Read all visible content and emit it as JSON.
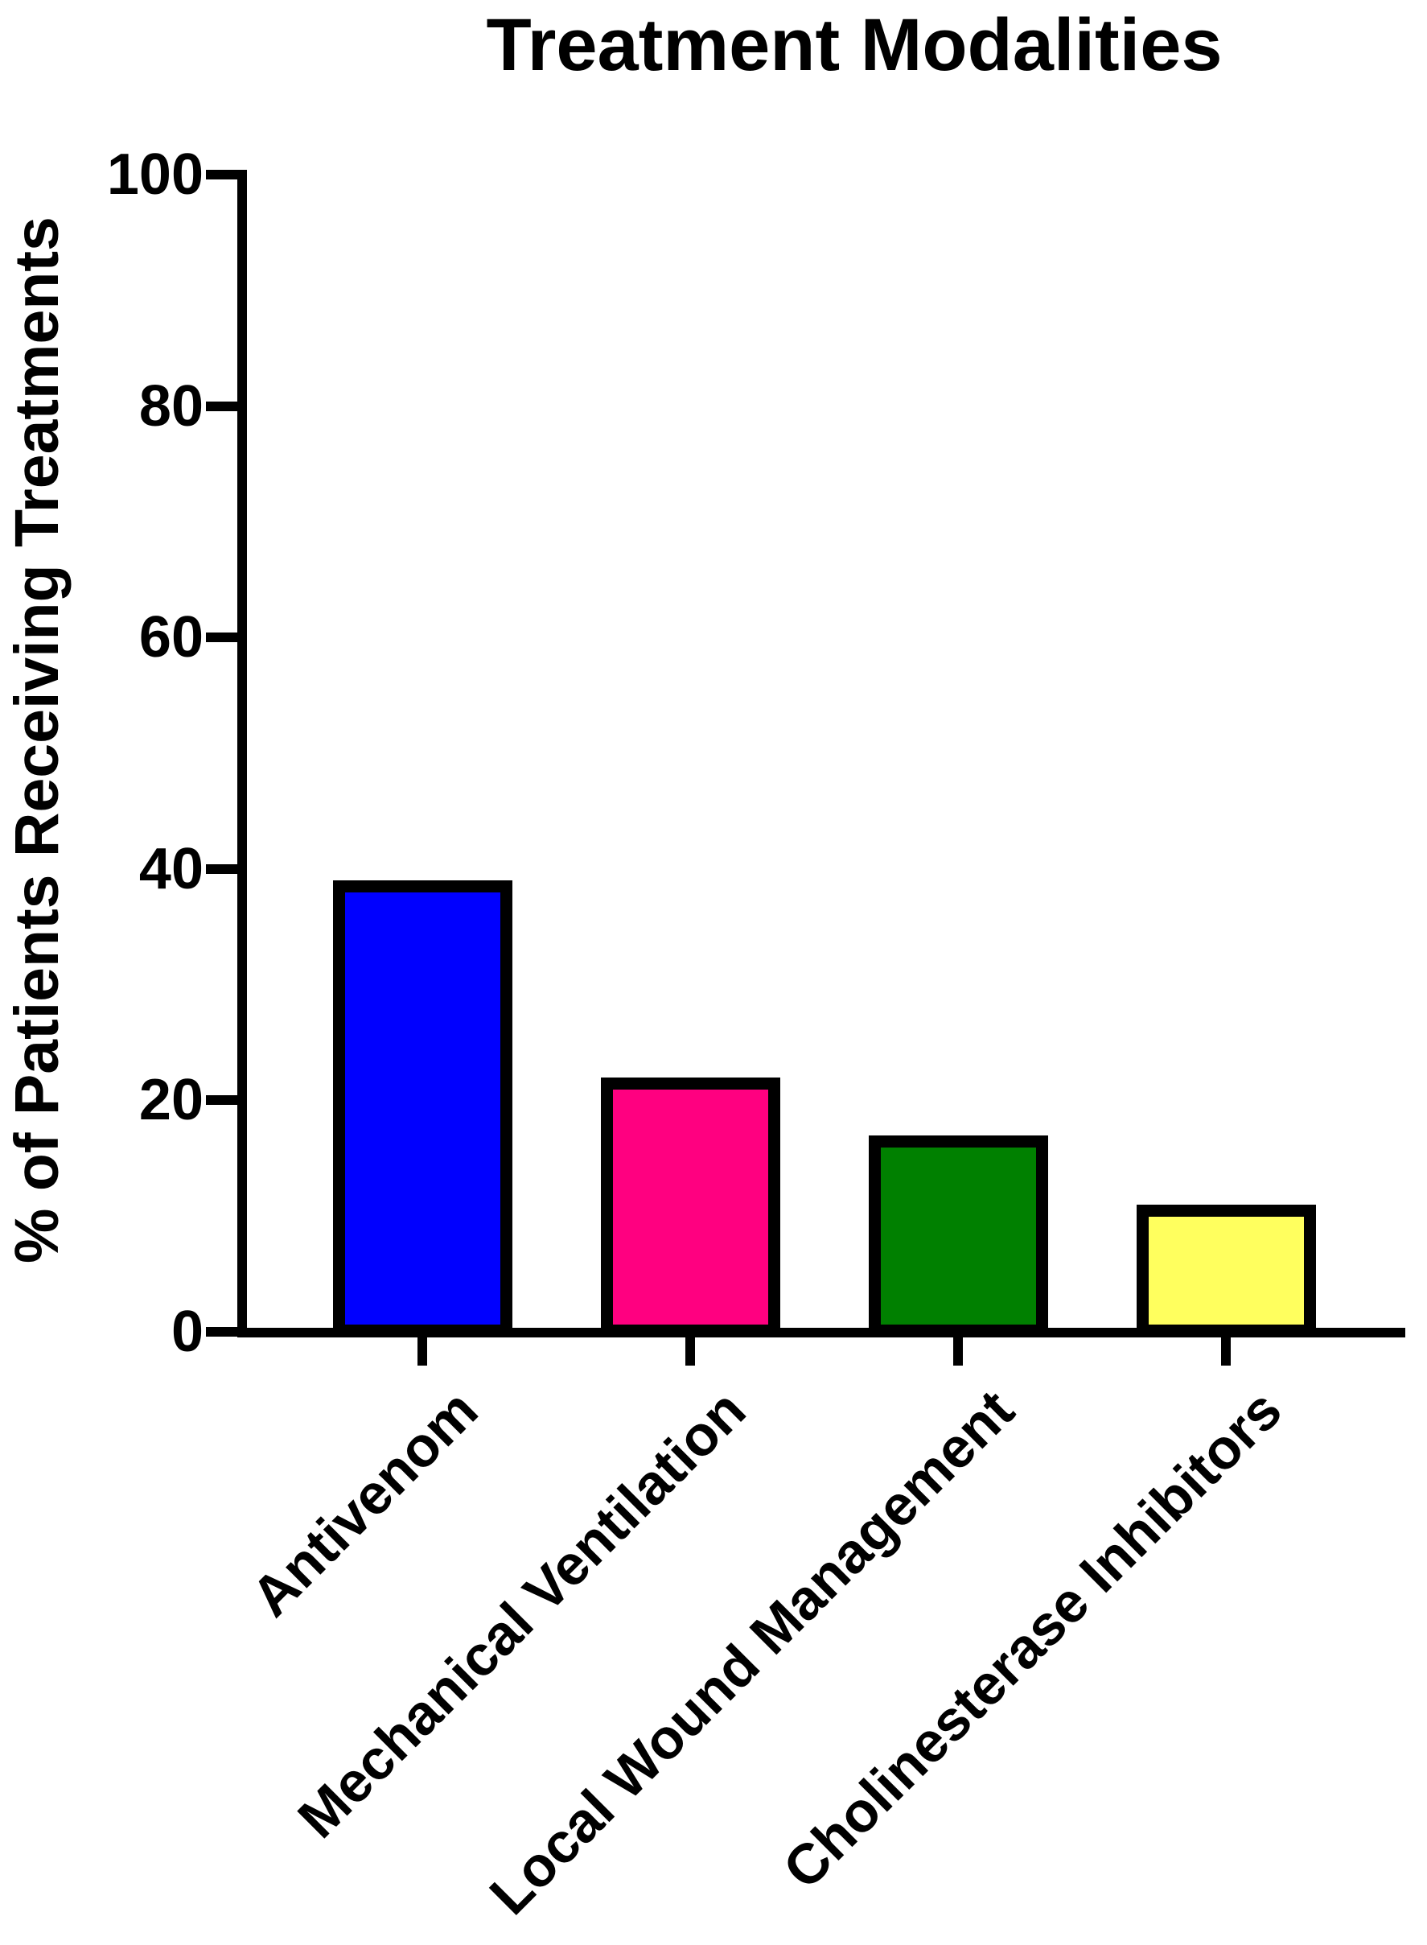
{
  "chart_data": {
    "type": "bar",
    "title": "Treatment Modalities",
    "xlabel": "",
    "ylabel": "% of Patients Receiving Treatments",
    "categories": [
      "Antivenom",
      "Mechanical Ventilation",
      "Local Wound Management",
      "Cholinesterase Inhibitors"
    ],
    "values": [
      39,
      22,
      17,
      11
    ],
    "bar_colors": [
      "#0000FF",
      "#FF0080",
      "#008000",
      "#FFFF5E"
    ],
    "bar_border_color": "#000000",
    "axis_color": "#000000",
    "ylim": [
      0,
      100
    ],
    "yticks": [
      0,
      20,
      40,
      60,
      80,
      100
    ],
    "grid": false,
    "legend": "none",
    "x_tick_label_rotation_deg": 45
  }
}
